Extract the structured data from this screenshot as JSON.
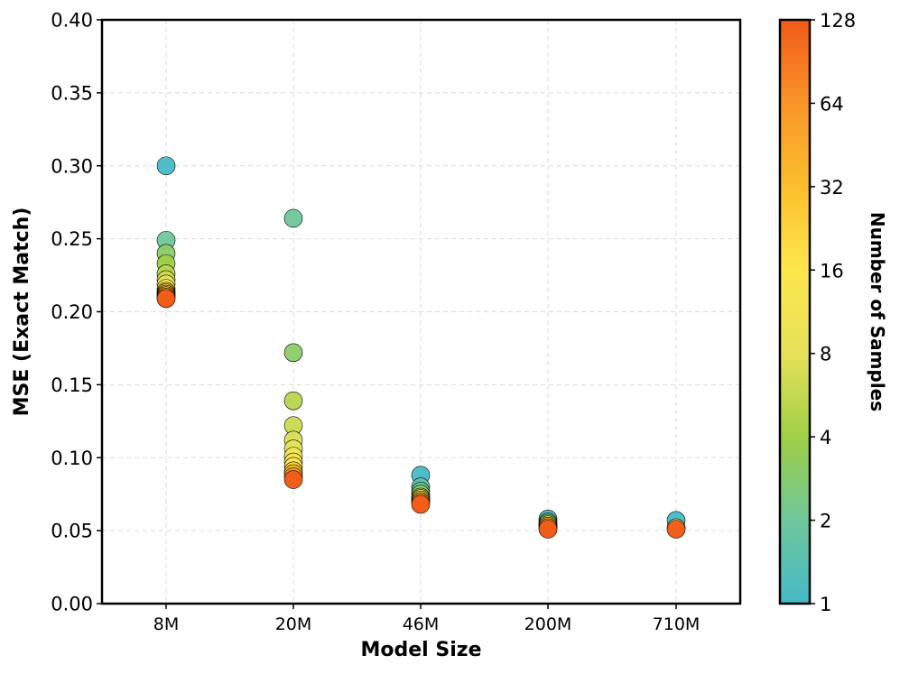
{
  "chart_data": {
    "type": "scatter",
    "title": "",
    "xlabel": "Model Size",
    "ylabel": "MSE (Exact Match)",
    "categories": [
      "8M",
      "20M",
      "46M",
      "200M",
      "710M"
    ],
    "ylim": [
      0,
      0.4
    ],
    "yticks": [
      "0.00",
      "0.05",
      "0.10",
      "0.15",
      "0.20",
      "0.25",
      "0.30",
      "0.35",
      "0.40"
    ],
    "grid": true,
    "colorbar": {
      "label": "Number of Samples",
      "scale": "log2",
      "range": [
        1,
        128
      ],
      "ticks": [
        "1",
        "2",
        "4",
        "8",
        "16",
        "32",
        "64",
        "128"
      ],
      "colors": [
        "#46b9c7",
        "#6fc79b",
        "#9fcf45",
        "#e6e25a",
        "#fde74c",
        "#fbbf2c",
        "#f89528",
        "#f15a19"
      ]
    },
    "series": [
      {
        "name": "8M",
        "points": [
          {
            "samples": 1,
            "y": 0.3
          },
          {
            "samples": 2,
            "y": 0.249
          },
          {
            "samples": 3,
            "y": 0.24
          },
          {
            "samples": 4,
            "y": 0.233
          },
          {
            "samples": 5,
            "y": 0.226
          },
          {
            "samples": 6,
            "y": 0.222
          },
          {
            "samples": 8,
            "y": 0.219
          },
          {
            "samples": 12,
            "y": 0.216
          },
          {
            "samples": 16,
            "y": 0.214
          },
          {
            "samples": 24,
            "y": 0.213
          },
          {
            "samples": 32,
            "y": 0.212
          },
          {
            "samples": 48,
            "y": 0.211
          },
          {
            "samples": 64,
            "y": 0.21
          },
          {
            "samples": 128,
            "y": 0.209
          }
        ]
      },
      {
        "name": "20M",
        "points": [
          {
            "samples": 2,
            "y": 0.264
          },
          {
            "samples": 3,
            "y": 0.172
          },
          {
            "samples": 5,
            "y": 0.139
          },
          {
            "samples": 6,
            "y": 0.122
          },
          {
            "samples": 7,
            "y": 0.112
          },
          {
            "samples": 8,
            "y": 0.106
          },
          {
            "samples": 10,
            "y": 0.101
          },
          {
            "samples": 12,
            "y": 0.097
          },
          {
            "samples": 16,
            "y": 0.094
          },
          {
            "samples": 24,
            "y": 0.091
          },
          {
            "samples": 32,
            "y": 0.089
          },
          {
            "samples": 64,
            "y": 0.087
          },
          {
            "samples": 128,
            "y": 0.085
          }
        ]
      },
      {
        "name": "46M",
        "points": [
          {
            "samples": 1,
            "y": 0.088
          },
          {
            "samples": 1.5,
            "y": 0.08
          },
          {
            "samples": 2,
            "y": 0.077
          },
          {
            "samples": 3,
            "y": 0.075
          },
          {
            "samples": 5,
            "y": 0.073
          },
          {
            "samples": 8,
            "y": 0.072
          },
          {
            "samples": 16,
            "y": 0.071
          },
          {
            "samples": 32,
            "y": 0.07
          },
          {
            "samples": 64,
            "y": 0.069
          },
          {
            "samples": 128,
            "y": 0.068
          }
        ]
      },
      {
        "name": "200M",
        "points": [
          {
            "samples": 1,
            "y": 0.058
          },
          {
            "samples": 2,
            "y": 0.056
          },
          {
            "samples": 4,
            "y": 0.055
          },
          {
            "samples": 8,
            "y": 0.054
          },
          {
            "samples": 16,
            "y": 0.053
          },
          {
            "samples": 32,
            "y": 0.053
          },
          {
            "samples": 64,
            "y": 0.052
          },
          {
            "samples": 128,
            "y": 0.051
          }
        ]
      },
      {
        "name": "710M",
        "points": [
          {
            "samples": 1,
            "y": 0.057
          },
          {
            "samples": 8,
            "y": 0.052
          },
          {
            "samples": 128,
            "y": 0.051
          }
        ]
      }
    ]
  }
}
